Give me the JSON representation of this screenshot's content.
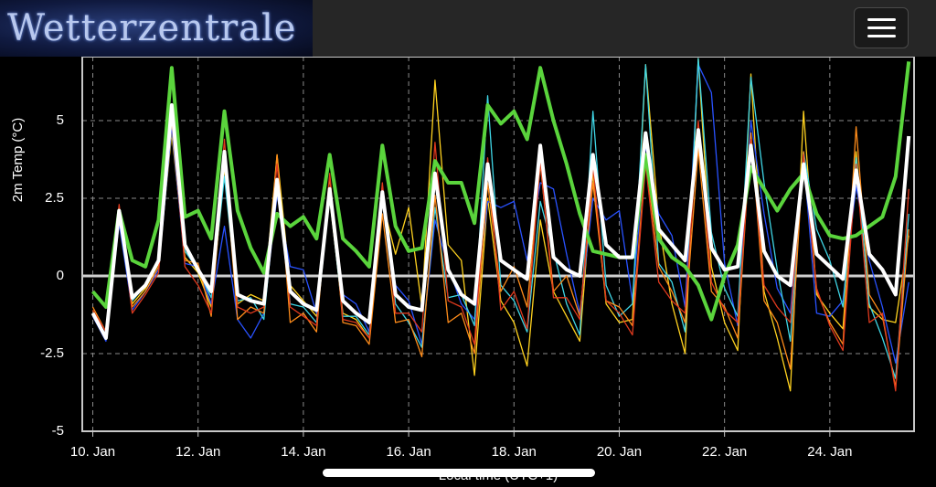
{
  "header": {
    "logo": "Wetterzentrale"
  },
  "chart_data": {
    "type": "line",
    "y_axis_label": "2m Temp (°C)",
    "x_axis_label": "Local time (UTC+1)",
    "xlim": [
      9.8,
      25.6
    ],
    "ylim": [
      -5,
      7
    ],
    "yticks": [
      -5,
      -2.5,
      0,
      2.5,
      5
    ],
    "xticks": [
      {
        "value": 10,
        "label": "10. Jan"
      },
      {
        "value": 12,
        "label": "12. Jan"
      },
      {
        "value": 14,
        "label": "14. Jan"
      },
      {
        "value": 16,
        "label": "16. Jan"
      },
      {
        "value": 18,
        "label": "18. Jan"
      },
      {
        "value": 20,
        "label": "20. Jan"
      },
      {
        "value": 22,
        "label": "22. Jan"
      },
      {
        "value": 24,
        "label": "24. Jan"
      }
    ],
    "grid": true,
    "x": [
      10,
      10.25,
      10.5,
      10.75,
      11,
      11.25,
      11.5,
      11.75,
      12,
      12.25,
      12.5,
      12.75,
      13,
      13.25,
      13.5,
      13.75,
      14,
      14.25,
      14.5,
      14.75,
      15,
      15.25,
      15.5,
      15.75,
      16,
      16.25,
      16.5,
      16.75,
      17,
      17.25,
      17.5,
      17.75,
      18,
      18.25,
      18.5,
      18.75,
      19,
      19.25,
      19.5,
      19.75,
      20,
      20.25,
      20.5,
      20.75,
      21,
      21.25,
      21.5,
      21.75,
      22,
      22.25,
      22.5,
      22.75,
      23,
      23.25,
      23.5,
      23.75,
      24,
      24.25,
      24.5,
      24.75,
      25,
      25.25,
      25.5
    ],
    "series": [
      {
        "color": "#ffd21f",
        "line_width": 1.3,
        "values": [
          -1.1,
          -2.0,
          1.9,
          -0.9,
          -0.4,
          0.4,
          4.6,
          0.6,
          0.1,
          -1.0,
          3.5,
          -0.9,
          -0.6,
          -0.8,
          3.9,
          -0.3,
          -0.8,
          -1.3,
          2.5,
          -1.2,
          -1.4,
          -2.0,
          2.4,
          0.7,
          2.2,
          -1.0,
          6.3,
          1.0,
          0.5,
          -3.2,
          2.5,
          -0.8,
          -1.5,
          -2.9,
          1.8,
          -0.5,
          -1.3,
          -2.1,
          3.3,
          -0.9,
          -1.5,
          -1.4,
          6.8,
          1.7,
          -0.9,
          -2.5,
          7.0,
          0.3,
          -1.5,
          -2.4,
          6.5,
          -0.5,
          -2.0,
          -3.7,
          5.3,
          -0.6,
          -1.2,
          -1.7,
          4.0,
          -1.0,
          -1.4,
          -1.5,
          1.3
        ]
      },
      {
        "color": "#2952ff",
        "line_width": 1.3,
        "values": [
          -1.3,
          -2.1,
          1.7,
          -1.1,
          -0.5,
          0.2,
          4.8,
          0.4,
          0.3,
          -0.9,
          1.6,
          -1.4,
          -2.0,
          -1.2,
          2.6,
          0.3,
          0.2,
          -1.2,
          2.8,
          -0.6,
          -0.9,
          -1.8,
          2.5,
          -0.3,
          -0.8,
          -2.2,
          1.8,
          0.3,
          -0.9,
          -1.4,
          2.4,
          2.2,
          2.4,
          0.5,
          3.0,
          2.8,
          0.7,
          -1.2,
          2.5,
          1.8,
          2.1,
          -0.8,
          4.2,
          2.0,
          1.3,
          -1.0,
          6.8,
          5.9,
          0.4,
          -1.6,
          5.0,
          2.0,
          -0.4,
          -1.2,
          3.8,
          -1.2,
          -1.3,
          -0.8,
          2.9,
          0.5,
          -1.0,
          -2.8,
          -0.2
        ]
      },
      {
        "color": "#3fd6e6",
        "line_width": 1.3,
        "values": [
          -1.2,
          -1.9,
          2.0,
          -0.8,
          -0.3,
          0.5,
          5.2,
          0.8,
          0.2,
          -0.7,
          3.2,
          -0.8,
          -0.7,
          -1.4,
          3.0,
          -0.9,
          -1.0,
          -1.5,
          2.6,
          -1.3,
          -1.3,
          -1.9,
          2.9,
          -0.9,
          -1.5,
          -2.3,
          2.2,
          -0.7,
          -0.6,
          -1.6,
          5.8,
          -0.3,
          -0.8,
          -1.8,
          2.4,
          0.8,
          -0.9,
          -1.9,
          5.3,
          -0.3,
          -1.3,
          -0.9,
          6.8,
          0.4,
          -0.2,
          -1.8,
          7.0,
          1.4,
          -0.4,
          -1.3,
          6.4,
          3.0,
          0.2,
          -2.1,
          4.0,
          1.5,
          0.5,
          -1.0,
          3.8,
          -0.9,
          -2.0,
          -3.3,
          2.0
        ]
      },
      {
        "color": "#ff8c1a",
        "line_width": 1.3,
        "values": [
          -1.0,
          -1.8,
          2.2,
          -1.0,
          -0.5,
          0.3,
          5.0,
          0.5,
          0.4,
          -1.3,
          3.8,
          -1.4,
          -1.0,
          -1.2,
          3.9,
          -1.5,
          -1.2,
          -1.8,
          3.2,
          -1.5,
          -1.6,
          -2.2,
          2.0,
          -1.5,
          -1.4,
          -2.6,
          2.6,
          -1.5,
          -1.2,
          -2.5,
          3.0,
          -0.5,
          0.3,
          -1.0,
          3.6,
          -0.5,
          0,
          -1.3,
          3.0,
          -0.8,
          -1.0,
          -1.6,
          3.8,
          0.3,
          -0.5,
          -1.5,
          4.1,
          -0.5,
          -1.0,
          -2.0,
          4.6,
          -0.8,
          -1.5,
          -3.0,
          4.0,
          -0.5,
          -1.5,
          -2.2,
          4.8,
          -0.6,
          -1.3,
          -3.6,
          1.5
        ]
      },
      {
        "color": "#e03a1e",
        "line_width": 1.3,
        "values": [
          -1.1,
          -1.8,
          2.3,
          -1.2,
          -0.6,
          0.1,
          5.2,
          0.3,
          -0.3,
          -1.2,
          4.4,
          -1.0,
          -1.2,
          -1.0,
          3.6,
          -1.0,
          -1.3,
          -1.6,
          3.3,
          -1.4,
          -1.5,
          -2.0,
          3.0,
          -1.2,
          -1.2,
          -1.8,
          4.3,
          -0.8,
          -1.0,
          -2.2,
          3.8,
          -1.1,
          -0.5,
          -1.7,
          3.7,
          -0.7,
          -0.7,
          -1.4,
          3.5,
          -0.8,
          -1.2,
          -1.9,
          3.6,
          -0.2,
          -0.8,
          -1.2,
          5.0,
          -0.2,
          -1.1,
          -1.5,
          4.4,
          -0.3,
          -1.0,
          -1.5,
          3.9,
          -0.4,
          -1.6,
          -2.4,
          3.6,
          -1.5,
          -1.2,
          -3.7,
          2.8
        ]
      },
      {
        "color": "#5ad43c",
        "line_width": 4,
        "values": [
          -0.5,
          -1.0,
          2.1,
          0.5,
          0.3,
          1.8,
          6.7,
          1.9,
          2.1,
          1.2,
          5.3,
          2.1,
          0.9,
          0.1,
          2.0,
          1.6,
          1.9,
          1.2,
          3.9,
          1.2,
          0.8,
          0.3,
          4.2,
          1.6,
          0.8,
          0.9,
          3.7,
          3.0,
          3.0,
          1.7,
          5.5,
          4.9,
          5.3,
          4.4,
          6.7,
          5.0,
          3.6,
          2.0,
          0.8,
          0.7,
          0.6,
          0.6,
          3.9,
          1.2,
          0.6,
          0.3,
          -0.3,
          -1.4,
          0,
          1.0,
          3.5,
          2.8,
          2.1,
          2.8,
          3.3,
          2.0,
          1.3,
          1.2,
          1.3,
          1.6,
          1.9,
          3.2,
          6.9
        ]
      },
      {
        "color": "#ffffff",
        "line_width": 4,
        "values": [
          -1.2,
          -2.0,
          2.1,
          -0.7,
          -0.3,
          0.5,
          5.5,
          1.0,
          0.2,
          -0.5,
          4.0,
          -0.6,
          -0.8,
          -0.9,
          3.1,
          -0.5,
          -0.9,
          -1.1,
          2.8,
          -0.8,
          -1.2,
          -1.5,
          2.7,
          -0.6,
          -1.0,
          -1.1,
          3.3,
          0.2,
          -0.6,
          -0.9,
          3.6,
          0.5,
          0.2,
          -0.1,
          4.2,
          0.6,
          0.2,
          0,
          3.9,
          1.0,
          0.6,
          0.6,
          4.6,
          1.5,
          1.0,
          0.5,
          4.7,
          0.9,
          0.2,
          0.3,
          4.2,
          0.8,
          0,
          -0.3,
          3.6,
          0.7,
          0.3,
          -0.1,
          3.4,
          0.7,
          0.2,
          -0.6,
          4.5
        ]
      }
    ]
  }
}
